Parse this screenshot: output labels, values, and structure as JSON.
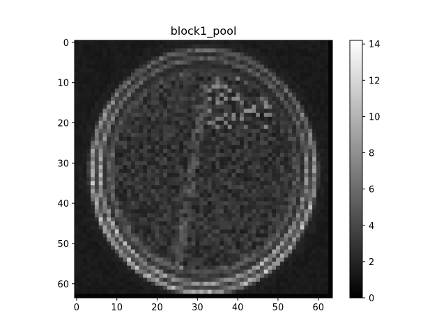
{
  "chart_data": {
    "type": "heatmap",
    "title": "block1_pool",
    "xlabel": "",
    "ylabel": "",
    "colormap": "gray",
    "grid_size": [
      64,
      64
    ],
    "xlim": [
      -0.5,
      63.5
    ],
    "ylim": [
      63.5,
      -0.5
    ],
    "x_ticks": [
      "0",
      "10",
      "20",
      "30",
      "40",
      "50",
      "60"
    ],
    "y_ticks": [
      "0",
      "10",
      "20",
      "30",
      "40",
      "50",
      "60"
    ],
    "colorbar": {
      "range": [
        0,
        14.2
      ],
      "ticks": [
        "0",
        "2",
        "4",
        "6",
        "8",
        "10",
        "12",
        "14"
      ]
    },
    "legend": "none",
    "grid": false
  }
}
